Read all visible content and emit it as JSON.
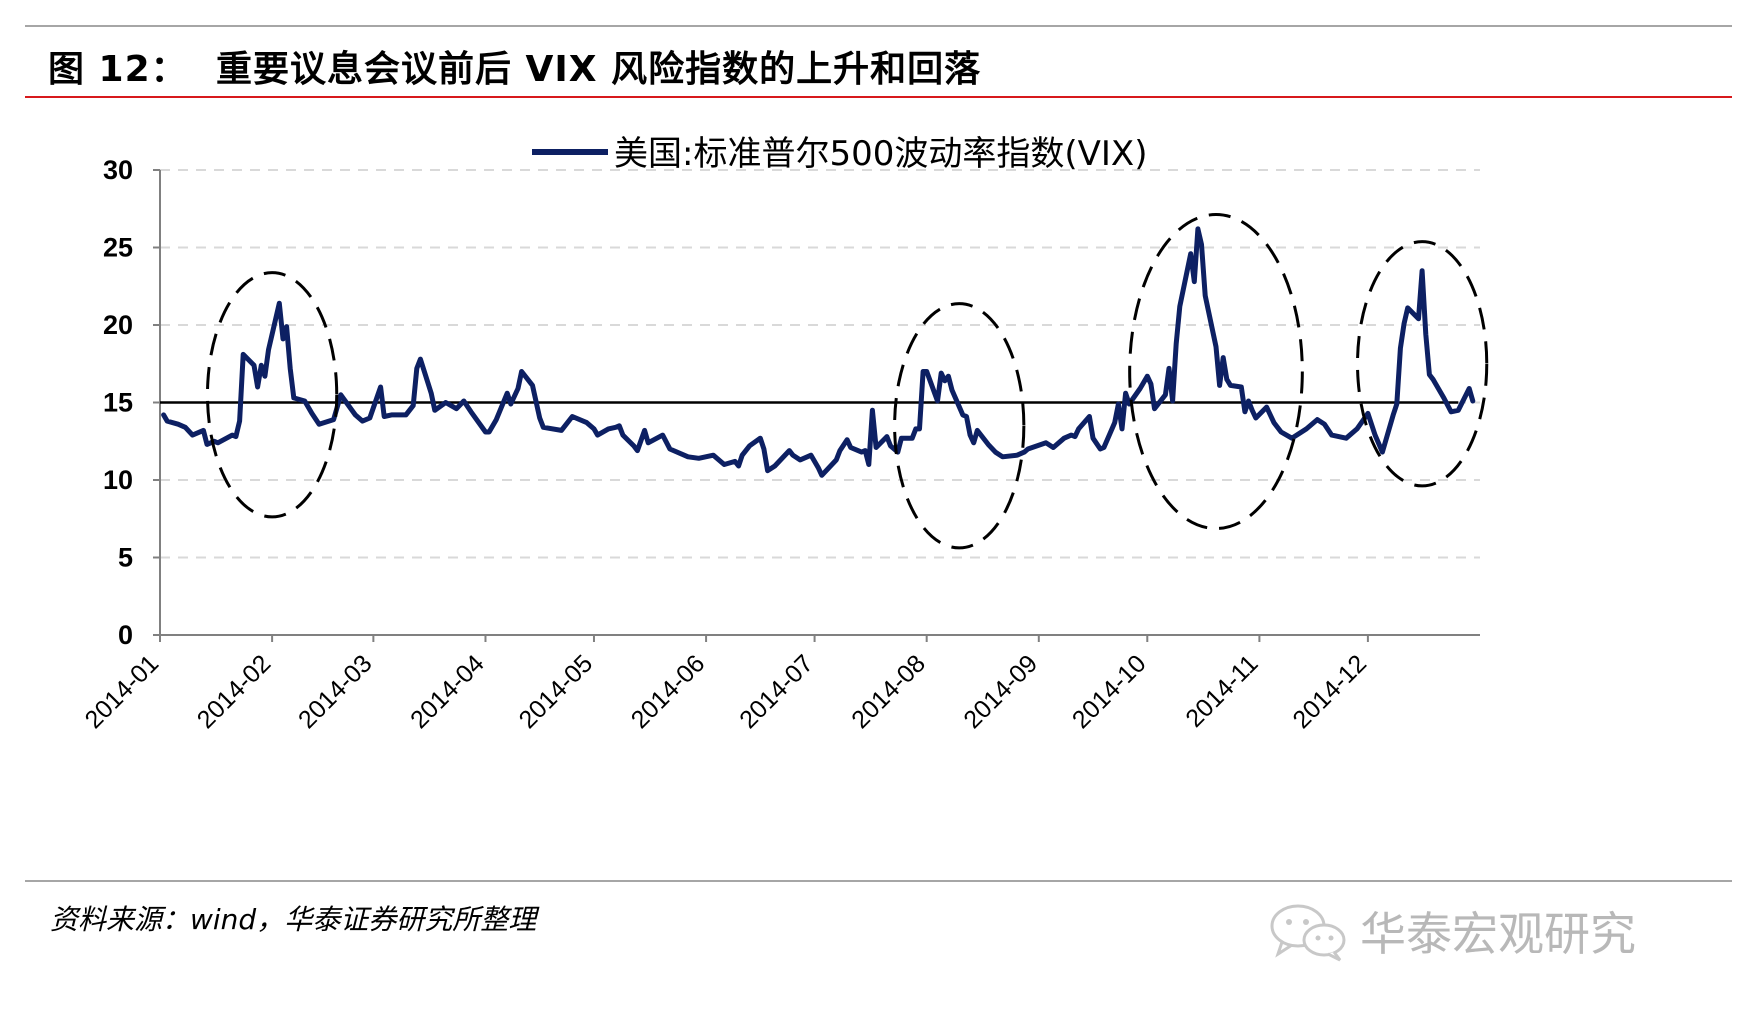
{
  "figure": {
    "label": "图 12：",
    "title": "重要议息会议前后 VIX 风险指数的上升和回落"
  },
  "source": "资料来源：wind，华泰证券研究所整理",
  "watermark": {
    "text": "华泰宏观研究",
    "icon": "wechat-icon"
  },
  "colors": {
    "series": "#0d2063",
    "title_rule": "#d7191c",
    "grid": "#d9d9d9",
    "axis": "#808080",
    "watermark": "#b8b8b8"
  },
  "chart_data": {
    "type": "line",
    "title": "",
    "xlabel": "",
    "ylabel": "",
    "ylim": [
      0,
      30
    ],
    "yticks": [
      "0",
      "5",
      "10",
      "15",
      "20",
      "25",
      "30"
    ],
    "grid": true,
    "legend_position": "top-center",
    "x_range": [
      "2014-01-01",
      "2014-12-31"
    ],
    "x_ticks": [
      "2014-01",
      "2014-02",
      "2014-03",
      "2014-04",
      "2014-05",
      "2014-06",
      "2014-07",
      "2014-08",
      "2014-09",
      "2014-10",
      "2014-11",
      "2014-12"
    ],
    "series": [
      {
        "name": "美国:标准普尔500波动率指数(VIX)",
        "points": [
          [
            "2014-01-02",
            14.2
          ],
          [
            "2014-01-03",
            13.8
          ],
          [
            "2014-01-06",
            13.6
          ],
          [
            "2014-01-08",
            13.4
          ],
          [
            "2014-01-10",
            12.9
          ],
          [
            "2014-01-13",
            13.2
          ],
          [
            "2014-01-14",
            12.3
          ],
          [
            "2014-01-16",
            12.5
          ],
          [
            "2014-01-17",
            12.4
          ],
          [
            "2014-01-21",
            12.9
          ],
          [
            "2014-01-22",
            12.8
          ],
          [
            "2014-01-23",
            13.8
          ],
          [
            "2014-01-24",
            18.1
          ],
          [
            "2014-01-27",
            17.4
          ],
          [
            "2014-01-28",
            16.0
          ],
          [
            "2014-01-29",
            17.4
          ],
          [
            "2014-01-30",
            16.7
          ],
          [
            "2014-01-31",
            18.4
          ],
          [
            "2014-02-03",
            21.4
          ],
          [
            "2014-02-04",
            19.1
          ],
          [
            "2014-02-05",
            19.9
          ],
          [
            "2014-02-06",
            17.2
          ],
          [
            "2014-02-07",
            15.3
          ],
          [
            "2014-02-10",
            15.1
          ],
          [
            "2014-02-12",
            14.3
          ],
          [
            "2014-02-14",
            13.6
          ],
          [
            "2014-02-18",
            13.9
          ],
          [
            "2014-02-20",
            15.5
          ],
          [
            "2014-02-24",
            14.2
          ],
          [
            "2014-02-26",
            13.8
          ],
          [
            "2014-02-28",
            14.0
          ],
          [
            "2014-03-03",
            16.0
          ],
          [
            "2014-03-04",
            14.1
          ],
          [
            "2014-03-06",
            14.2
          ],
          [
            "2014-03-10",
            14.2
          ],
          [
            "2014-03-12",
            14.8
          ],
          [
            "2014-03-13",
            17.2
          ],
          [
            "2014-03-14",
            17.8
          ],
          [
            "2014-03-17",
            15.6
          ],
          [
            "2014-03-18",
            14.5
          ],
          [
            "2014-03-21",
            15.0
          ],
          [
            "2014-03-24",
            14.6
          ],
          [
            "2014-03-26",
            15.1
          ],
          [
            "2014-03-28",
            14.4
          ],
          [
            "2014-04-01",
            13.1
          ],
          [
            "2014-04-02",
            13.1
          ],
          [
            "2014-04-04",
            13.9
          ],
          [
            "2014-04-07",
            15.6
          ],
          [
            "2014-04-08",
            14.9
          ],
          [
            "2014-04-10",
            15.9
          ],
          [
            "2014-04-11",
            17.0
          ],
          [
            "2014-04-14",
            16.1
          ],
          [
            "2014-04-16",
            14.0
          ],
          [
            "2014-04-17",
            13.4
          ],
          [
            "2014-04-22",
            13.2
          ],
          [
            "2014-04-25",
            14.1
          ],
          [
            "2014-04-29",
            13.7
          ],
          [
            "2014-05-01",
            13.3
          ],
          [
            "2014-05-02",
            12.9
          ],
          [
            "2014-05-05",
            13.3
          ],
          [
            "2014-05-07",
            13.4
          ],
          [
            "2014-05-08",
            13.5
          ],
          [
            "2014-05-09",
            12.9
          ],
          [
            "2014-05-12",
            12.2
          ],
          [
            "2014-05-13",
            11.9
          ],
          [
            "2014-05-15",
            13.2
          ],
          [
            "2014-05-16",
            12.4
          ],
          [
            "2014-05-20",
            12.9
          ],
          [
            "2014-05-22",
            12.0
          ],
          [
            "2014-05-27",
            11.5
          ],
          [
            "2014-05-30",
            11.4
          ],
          [
            "2014-06-03",
            11.6
          ],
          [
            "2014-06-06",
            11.0
          ],
          [
            "2014-06-09",
            11.2
          ],
          [
            "2014-06-10",
            10.9
          ],
          [
            "2014-06-11",
            11.6
          ],
          [
            "2014-06-13",
            12.2
          ],
          [
            "2014-06-16",
            12.7
          ],
          [
            "2014-06-17",
            12.0
          ],
          [
            "2014-06-18",
            10.6
          ],
          [
            "2014-06-20",
            10.9
          ],
          [
            "2014-06-24",
            11.9
          ],
          [
            "2014-06-25",
            11.6
          ],
          [
            "2014-06-27",
            11.3
          ],
          [
            "2014-06-30",
            11.6
          ],
          [
            "2014-07-02",
            10.8
          ],
          [
            "2014-07-03",
            10.3
          ],
          [
            "2014-07-07",
            11.3
          ],
          [
            "2014-07-08",
            11.9
          ],
          [
            "2014-07-10",
            12.6
          ],
          [
            "2014-07-11",
            12.1
          ],
          [
            "2014-07-14",
            11.8
          ],
          [
            "2014-07-15",
            11.9
          ],
          [
            "2014-07-16",
            11.0
          ],
          [
            "2014-07-17",
            14.5
          ],
          [
            "2014-07-18",
            12.1
          ],
          [
            "2014-07-21",
            12.8
          ],
          [
            "2014-07-22",
            12.2
          ],
          [
            "2014-07-24",
            11.8
          ],
          [
            "2014-07-25",
            12.7
          ],
          [
            "2014-07-28",
            12.7
          ],
          [
            "2014-07-29",
            13.3
          ],
          [
            "2014-07-30",
            13.3
          ],
          [
            "2014-07-31",
            17.0
          ],
          [
            "2014-08-01",
            17.0
          ],
          [
            "2014-08-04",
            15.1
          ],
          [
            "2014-08-05",
            16.9
          ],
          [
            "2014-08-06",
            16.4
          ],
          [
            "2014-08-07",
            16.7
          ],
          [
            "2014-08-08",
            15.8
          ],
          [
            "2014-08-11",
            14.2
          ],
          [
            "2014-08-12",
            14.1
          ],
          [
            "2014-08-13",
            12.9
          ],
          [
            "2014-08-14",
            12.4
          ],
          [
            "2014-08-15",
            13.2
          ],
          [
            "2014-08-18",
            12.3
          ],
          [
            "2014-08-20",
            11.8
          ],
          [
            "2014-08-22",
            11.5
          ],
          [
            "2014-08-26",
            11.6
          ],
          [
            "2014-08-28",
            11.8
          ],
          [
            "2014-08-29",
            12.0
          ],
          [
            "2014-09-03",
            12.4
          ],
          [
            "2014-09-05",
            12.1
          ],
          [
            "2014-09-08",
            12.7
          ],
          [
            "2014-09-10",
            12.9
          ],
          [
            "2014-09-11",
            12.8
          ],
          [
            "2014-09-12",
            13.3
          ],
          [
            "2014-09-15",
            14.1
          ],
          [
            "2014-09-16",
            12.7
          ],
          [
            "2014-09-18",
            12.0
          ],
          [
            "2014-09-19",
            12.1
          ],
          [
            "2014-09-22",
            13.7
          ],
          [
            "2014-09-23",
            14.9
          ],
          [
            "2014-09-24",
            13.3
          ],
          [
            "2014-09-25",
            15.6
          ],
          [
            "2014-09-26",
            14.9
          ],
          [
            "2014-09-29",
            15.9
          ],
          [
            "2014-09-30",
            16.3
          ],
          [
            "2014-10-01",
            16.7
          ],
          [
            "2014-10-02",
            16.2
          ],
          [
            "2014-10-03",
            14.6
          ],
          [
            "2014-10-06",
            15.5
          ],
          [
            "2014-10-07",
            17.2
          ],
          [
            "2014-10-08",
            15.1
          ],
          [
            "2014-10-09",
            18.8
          ],
          [
            "2014-10-10",
            21.2
          ],
          [
            "2014-10-13",
            24.6
          ],
          [
            "2014-10-14",
            22.8
          ],
          [
            "2014-10-15",
            26.2
          ],
          [
            "2014-10-16",
            25.2
          ],
          [
            "2014-10-17",
            21.9
          ],
          [
            "2014-10-20",
            18.6
          ],
          [
            "2014-10-21",
            16.1
          ],
          [
            "2014-10-22",
            17.9
          ],
          [
            "2014-10-23",
            16.5
          ],
          [
            "2014-10-24",
            16.1
          ],
          [
            "2014-10-27",
            16.0
          ],
          [
            "2014-10-28",
            14.4
          ],
          [
            "2014-10-29",
            15.1
          ],
          [
            "2014-10-30",
            14.5
          ],
          [
            "2014-10-31",
            14.0
          ],
          [
            "2014-11-03",
            14.7
          ],
          [
            "2014-11-05",
            13.7
          ],
          [
            "2014-11-07",
            13.1
          ],
          [
            "2014-11-10",
            12.7
          ],
          [
            "2014-11-12",
            13.0
          ],
          [
            "2014-11-14",
            13.3
          ],
          [
            "2014-11-17",
            13.9
          ],
          [
            "2014-11-19",
            13.6
          ],
          [
            "2014-11-21",
            12.9
          ],
          [
            "2014-11-25",
            12.7
          ],
          [
            "2014-11-28",
            13.3
          ],
          [
            "2014-12-01",
            14.3
          ],
          [
            "2014-12-03",
            12.9
          ],
          [
            "2014-12-05",
            11.8
          ],
          [
            "2014-12-08",
            14.2
          ],
          [
            "2014-12-09",
            14.9
          ],
          [
            "2014-12-10",
            18.5
          ],
          [
            "2014-12-11",
            20.1
          ],
          [
            "2014-12-12",
            21.1
          ],
          [
            "2014-12-15",
            20.4
          ],
          [
            "2014-12-16",
            23.5
          ],
          [
            "2014-12-17",
            19.4
          ],
          [
            "2014-12-18",
            16.8
          ],
          [
            "2014-12-19",
            16.5
          ],
          [
            "2014-12-22",
            15.3
          ],
          [
            "2014-12-24",
            14.4
          ],
          [
            "2014-12-26",
            14.5
          ],
          [
            "2014-12-29",
            15.9
          ],
          [
            "2014-12-30",
            15.1
          ]
        ]
      }
    ],
    "reference_line": {
      "y": 15,
      "from": "2014-01-01",
      "to": "2014-12-31"
    },
    "annotations": [
      {
        "type": "dashed-ellipse",
        "center_date": "2014-02-01",
        "center_value": 15.5,
        "span_days": 28,
        "span_value": 15.5
      },
      {
        "type": "dashed-ellipse",
        "center_date": "2014-08-10",
        "center_value": 13.5,
        "span_days": 28,
        "span_value": 15.5
      },
      {
        "type": "dashed-ellipse",
        "center_date": "2014-10-20",
        "center_value": 17.0,
        "span_days": 40,
        "span_value": 20.0
      },
      {
        "type": "dashed-ellipse",
        "center_date": "2014-12-16",
        "center_value": 17.5,
        "span_days": 28,
        "span_value": 15.5
      }
    ]
  }
}
